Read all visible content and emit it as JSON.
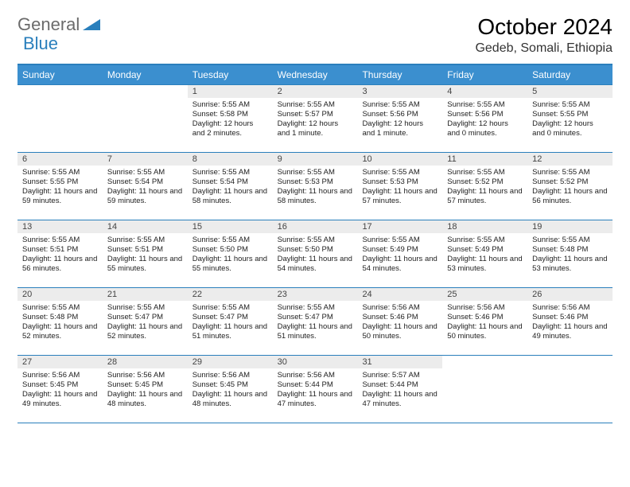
{
  "logo": {
    "word1": "General",
    "word2": "Blue"
  },
  "header": {
    "title": "October 2024",
    "location": "Gedeb, Somali, Ethiopia"
  },
  "colors": {
    "brand_blue": "#2a7fbc",
    "header_row": "#3b8fcf",
    "date_bg": "#ececec",
    "text": "#000000",
    "body_bg": "#ffffff"
  },
  "day_names": [
    "Sunday",
    "Monday",
    "Tuesday",
    "Wednesday",
    "Thursday",
    "Friday",
    "Saturday"
  ],
  "weeks": [
    [
      null,
      null,
      {
        "date": "1",
        "sunrise": "Sunrise: 5:55 AM",
        "sunset": "Sunset: 5:58 PM",
        "daylight": "Daylight: 12 hours and 2 minutes."
      },
      {
        "date": "2",
        "sunrise": "Sunrise: 5:55 AM",
        "sunset": "Sunset: 5:57 PM",
        "daylight": "Daylight: 12 hours and 1 minute."
      },
      {
        "date": "3",
        "sunrise": "Sunrise: 5:55 AM",
        "sunset": "Sunset: 5:56 PM",
        "daylight": "Daylight: 12 hours and 1 minute."
      },
      {
        "date": "4",
        "sunrise": "Sunrise: 5:55 AM",
        "sunset": "Sunset: 5:56 PM",
        "daylight": "Daylight: 12 hours and 0 minutes."
      },
      {
        "date": "5",
        "sunrise": "Sunrise: 5:55 AM",
        "sunset": "Sunset: 5:55 PM",
        "daylight": "Daylight: 12 hours and 0 minutes."
      }
    ],
    [
      {
        "date": "6",
        "sunrise": "Sunrise: 5:55 AM",
        "sunset": "Sunset: 5:55 PM",
        "daylight": "Daylight: 11 hours and 59 minutes."
      },
      {
        "date": "7",
        "sunrise": "Sunrise: 5:55 AM",
        "sunset": "Sunset: 5:54 PM",
        "daylight": "Daylight: 11 hours and 59 minutes."
      },
      {
        "date": "8",
        "sunrise": "Sunrise: 5:55 AM",
        "sunset": "Sunset: 5:54 PM",
        "daylight": "Daylight: 11 hours and 58 minutes."
      },
      {
        "date": "9",
        "sunrise": "Sunrise: 5:55 AM",
        "sunset": "Sunset: 5:53 PM",
        "daylight": "Daylight: 11 hours and 58 minutes."
      },
      {
        "date": "10",
        "sunrise": "Sunrise: 5:55 AM",
        "sunset": "Sunset: 5:53 PM",
        "daylight": "Daylight: 11 hours and 57 minutes."
      },
      {
        "date": "11",
        "sunrise": "Sunrise: 5:55 AM",
        "sunset": "Sunset: 5:52 PM",
        "daylight": "Daylight: 11 hours and 57 minutes."
      },
      {
        "date": "12",
        "sunrise": "Sunrise: 5:55 AM",
        "sunset": "Sunset: 5:52 PM",
        "daylight": "Daylight: 11 hours and 56 minutes."
      }
    ],
    [
      {
        "date": "13",
        "sunrise": "Sunrise: 5:55 AM",
        "sunset": "Sunset: 5:51 PM",
        "daylight": "Daylight: 11 hours and 56 minutes."
      },
      {
        "date": "14",
        "sunrise": "Sunrise: 5:55 AM",
        "sunset": "Sunset: 5:51 PM",
        "daylight": "Daylight: 11 hours and 55 minutes."
      },
      {
        "date": "15",
        "sunrise": "Sunrise: 5:55 AM",
        "sunset": "Sunset: 5:50 PM",
        "daylight": "Daylight: 11 hours and 55 minutes."
      },
      {
        "date": "16",
        "sunrise": "Sunrise: 5:55 AM",
        "sunset": "Sunset: 5:50 PM",
        "daylight": "Daylight: 11 hours and 54 minutes."
      },
      {
        "date": "17",
        "sunrise": "Sunrise: 5:55 AM",
        "sunset": "Sunset: 5:49 PM",
        "daylight": "Daylight: 11 hours and 54 minutes."
      },
      {
        "date": "18",
        "sunrise": "Sunrise: 5:55 AM",
        "sunset": "Sunset: 5:49 PM",
        "daylight": "Daylight: 11 hours and 53 minutes."
      },
      {
        "date": "19",
        "sunrise": "Sunrise: 5:55 AM",
        "sunset": "Sunset: 5:48 PM",
        "daylight": "Daylight: 11 hours and 53 minutes."
      }
    ],
    [
      {
        "date": "20",
        "sunrise": "Sunrise: 5:55 AM",
        "sunset": "Sunset: 5:48 PM",
        "daylight": "Daylight: 11 hours and 52 minutes."
      },
      {
        "date": "21",
        "sunrise": "Sunrise: 5:55 AM",
        "sunset": "Sunset: 5:47 PM",
        "daylight": "Daylight: 11 hours and 52 minutes."
      },
      {
        "date": "22",
        "sunrise": "Sunrise: 5:55 AM",
        "sunset": "Sunset: 5:47 PM",
        "daylight": "Daylight: 11 hours and 51 minutes."
      },
      {
        "date": "23",
        "sunrise": "Sunrise: 5:55 AM",
        "sunset": "Sunset: 5:47 PM",
        "daylight": "Daylight: 11 hours and 51 minutes."
      },
      {
        "date": "24",
        "sunrise": "Sunrise: 5:56 AM",
        "sunset": "Sunset: 5:46 PM",
        "daylight": "Daylight: 11 hours and 50 minutes."
      },
      {
        "date": "25",
        "sunrise": "Sunrise: 5:56 AM",
        "sunset": "Sunset: 5:46 PM",
        "daylight": "Daylight: 11 hours and 50 minutes."
      },
      {
        "date": "26",
        "sunrise": "Sunrise: 5:56 AM",
        "sunset": "Sunset: 5:46 PM",
        "daylight": "Daylight: 11 hours and 49 minutes."
      }
    ],
    [
      {
        "date": "27",
        "sunrise": "Sunrise: 5:56 AM",
        "sunset": "Sunset: 5:45 PM",
        "daylight": "Daylight: 11 hours and 49 minutes."
      },
      {
        "date": "28",
        "sunrise": "Sunrise: 5:56 AM",
        "sunset": "Sunset: 5:45 PM",
        "daylight": "Daylight: 11 hours and 48 minutes."
      },
      {
        "date": "29",
        "sunrise": "Sunrise: 5:56 AM",
        "sunset": "Sunset: 5:45 PM",
        "daylight": "Daylight: 11 hours and 48 minutes."
      },
      {
        "date": "30",
        "sunrise": "Sunrise: 5:56 AM",
        "sunset": "Sunset: 5:44 PM",
        "daylight": "Daylight: 11 hours and 47 minutes."
      },
      {
        "date": "31",
        "sunrise": "Sunrise: 5:57 AM",
        "sunset": "Sunset: 5:44 PM",
        "daylight": "Daylight: 11 hours and 47 minutes."
      },
      null,
      null
    ]
  ]
}
